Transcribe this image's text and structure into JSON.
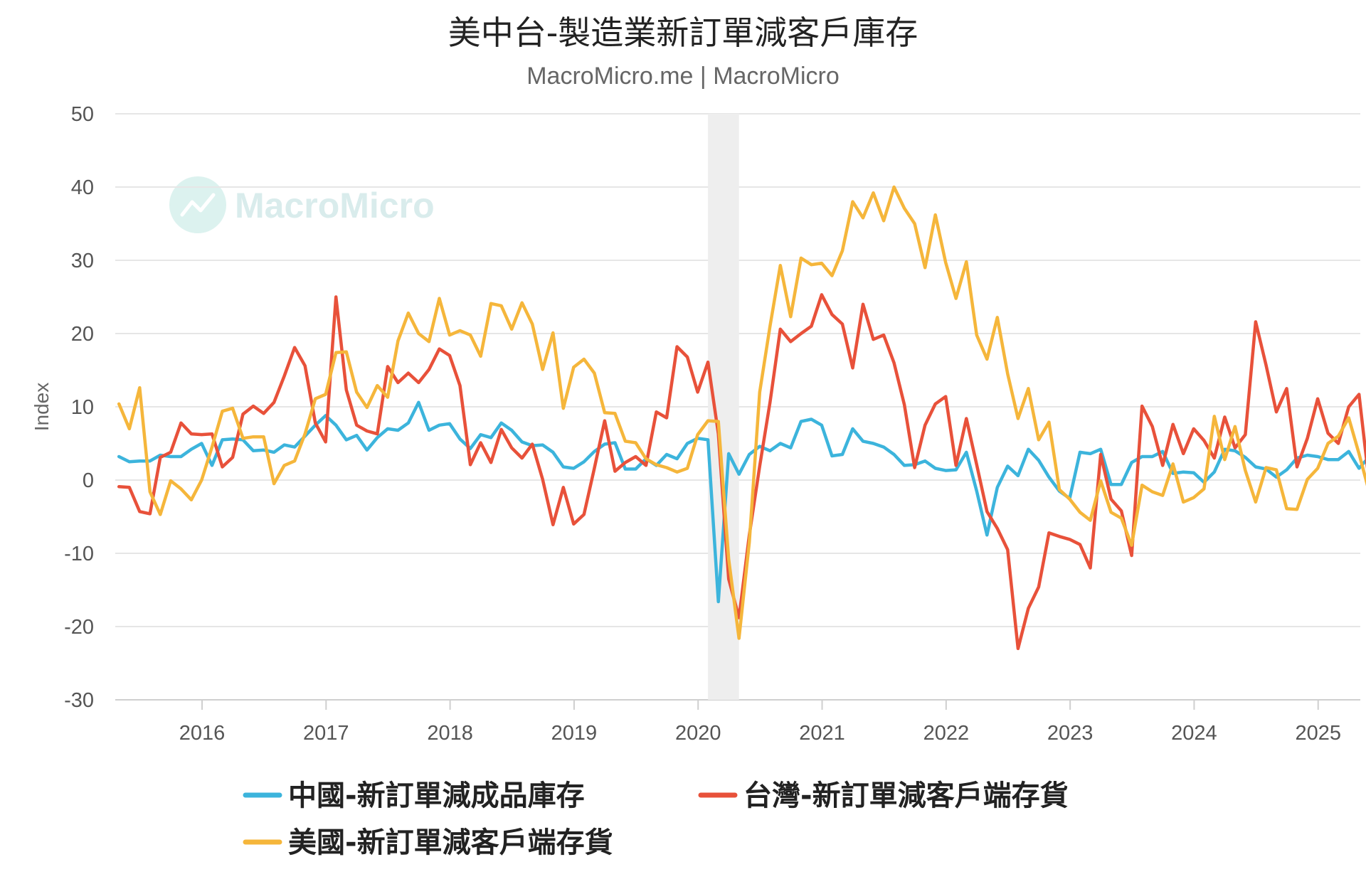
{
  "chart_data": {
    "type": "line",
    "title": "美中台-製造業新訂單減客戶庫存",
    "subtitle": "MacroMicro.me | MacroMicro",
    "watermark": "MacroMicro",
    "ylabel": "Index",
    "ylim": [
      -30,
      50
    ],
    "yticks": [
      -30,
      -20,
      -10,
      0,
      10,
      20,
      30,
      40,
      50
    ],
    "xlim": [
      2015.3,
      2025.34
    ],
    "xticks": [
      2016,
      2017,
      2018,
      2019,
      2020,
      2021,
      2022,
      2023,
      2024,
      2025
    ],
    "xtick_labels": [
      "2016",
      "2017",
      "2018",
      "2019",
      "2020",
      "2021",
      "2022",
      "2023",
      "2024",
      "2025"
    ],
    "grid": true,
    "legend_position": "bottom",
    "shaded_range": [
      2020.08,
      2020.33
    ],
    "x_start": 2015.33,
    "x_step": 0.08333,
    "series": [
      {
        "name": "中國-新訂單減成品庫存",
        "color": "#3cb4dc",
        "values": [
          3.2,
          2.5,
          2.6,
          2.6,
          3.4,
          3.2,
          3.2,
          4.2,
          5.0,
          2.0,
          5.5,
          5.6,
          5.5,
          4.0,
          4.1,
          3.8,
          4.8,
          4.5,
          6.0,
          7.5,
          8.8,
          7.5,
          5.5,
          6.1,
          4.1,
          5.8,
          7.0,
          6.8,
          7.8,
          10.6,
          6.8,
          7.5,
          7.7,
          5.6,
          4.3,
          6.2,
          5.8,
          7.8,
          6.8,
          5.2,
          4.7,
          4.8,
          3.8,
          1.8,
          1.6,
          2.5,
          3.9,
          4.9,
          5.1,
          1.5,
          1.5,
          2.9,
          2.0,
          3.5,
          2.9,
          5.0,
          5.7,
          5.5,
          -16.6,
          3.6,
          0.8,
          3.5,
          4.6,
          4.0,
          5.0,
          4.4,
          8.0,
          8.3,
          7.5,
          3.3,
          3.5,
          7.0,
          5.3,
          5.0,
          4.5,
          3.5,
          2.0,
          2.1,
          2.6,
          1.6,
          1.3,
          1.4,
          3.8,
          -1.5,
          -7.5,
          -1.0,
          1.9,
          0.6,
          4.2,
          2.7,
          0.4,
          -1.5,
          -2.5,
          3.8,
          3.6,
          4.2,
          -0.6,
          -0.6,
          2.4,
          3.2,
          3.2,
          3.9,
          0.9,
          1.1,
          1.0,
          -0.3,
          1.1,
          4.2,
          4.0,
          3.1,
          1.8,
          1.5,
          0.4,
          1.4,
          3.0,
          3.4,
          3.2,
          2.8,
          2.8,
          3.9,
          1.6,
          3.2
        ]
      },
      {
        "name": "台灣-新訂單減客戶端存貨",
        "color": "#e8513a",
        "values": [
          -0.9,
          -1.0,
          -4.3,
          -4.6,
          3.1,
          3.8,
          7.8,
          6.3,
          6.2,
          6.3,
          1.8,
          3.1,
          9.0,
          10.1,
          9.1,
          10.6,
          14.2,
          18.1,
          15.6,
          7.8,
          5.2,
          25.0,
          12.3,
          7.5,
          6.7,
          6.3,
          15.5,
          13.3,
          14.6,
          13.3,
          15.1,
          17.9,
          17.0,
          12.9,
          2.1,
          5.1,
          2.4,
          6.9,
          4.4,
          3.0,
          4.9,
          0.1,
          -6.1,
          -1.0,
          -6.0,
          -4.7,
          1.6,
          8.1,
          1.2,
          2.4,
          3.2,
          2.0,
          9.3,
          8.5,
          18.2,
          16.8,
          12.0,
          16.1,
          6.3,
          -13.5,
          -18.8,
          -7.5,
          1.9,
          10.6,
          20.6,
          18.9,
          20.0,
          21.0,
          25.3,
          22.6,
          21.3,
          15.3,
          24.0,
          19.2,
          19.8,
          16.0,
          10.3,
          1.7,
          7.5,
          10.4,
          11.4,
          2.0,
          8.4,
          2.1,
          -4.3,
          -6.6,
          -9.5,
          -23.0,
          -17.5,
          -14.6,
          -7.2,
          -7.7,
          -8.1,
          -8.8,
          -12.0,
          3.5,
          -2.6,
          -4.2,
          -10.3,
          10.1,
          7.3,
          2.0,
          7.6,
          3.6,
          7.0,
          5.4,
          3.0,
          8.6,
          4.4,
          6.2,
          21.6,
          15.7,
          9.3,
          12.5,
          1.8,
          5.7,
          11.1,
          6.4,
          5.0,
          10.0,
          11.7,
          -0.6,
          2.7
        ]
      },
      {
        "name": "美國-新訂單減客戶端存貨",
        "color": "#f5b63b",
        "values": [
          10.4,
          7.0,
          12.6,
          -1.6,
          -4.7,
          -0.1,
          -1.2,
          -2.7,
          0.0,
          4.5,
          9.4,
          9.8,
          5.7,
          5.9,
          5.9,
          -0.5,
          2.0,
          2.6,
          6.3,
          11.1,
          11.7,
          17.4,
          17.5,
          12.0,
          9.9,
          12.9,
          11.3,
          19.0,
          22.8,
          20.0,
          18.9,
          24.8,
          19.8,
          20.4,
          19.8,
          16.9,
          24.1,
          23.8,
          20.6,
          24.2,
          21.3,
          15.1,
          20.1,
          9.8,
          15.4,
          16.5,
          14.6,
          9.2,
          9.1,
          5.3,
          5.1,
          2.9,
          2.1,
          1.7,
          1.1,
          1.6,
          6.2,
          8.1,
          8.0,
          -10.8,
          -21.6,
          -8.5,
          12.0,
          21.0,
          29.3,
          22.3,
          30.3,
          29.4,
          29.6,
          27.9,
          31.3,
          38.0,
          35.8,
          39.2,
          35.4,
          40.0,
          37.1,
          35.0,
          29.0,
          36.2,
          29.7,
          24.8,
          29.8,
          19.8,
          16.5,
          22.2,
          14.5,
          8.4,
          12.5,
          5.5,
          7.9,
          -1.3,
          -2.6,
          -4.4,
          -5.5,
          -0.1,
          -4.4,
          -5.2,
          -8.9,
          -0.7,
          -1.6,
          -2.1,
          2.2,
          -3.0,
          -2.4,
          -1.2,
          8.7,
          2.8,
          7.3,
          1.3,
          -3.0,
          1.7,
          1.4,
          -3.9,
          -4.0,
          0.1,
          1.6,
          5.0,
          6.0,
          8.5,
          3.6,
          -1.7,
          1.0,
          3.0
        ]
      }
    ]
  }
}
